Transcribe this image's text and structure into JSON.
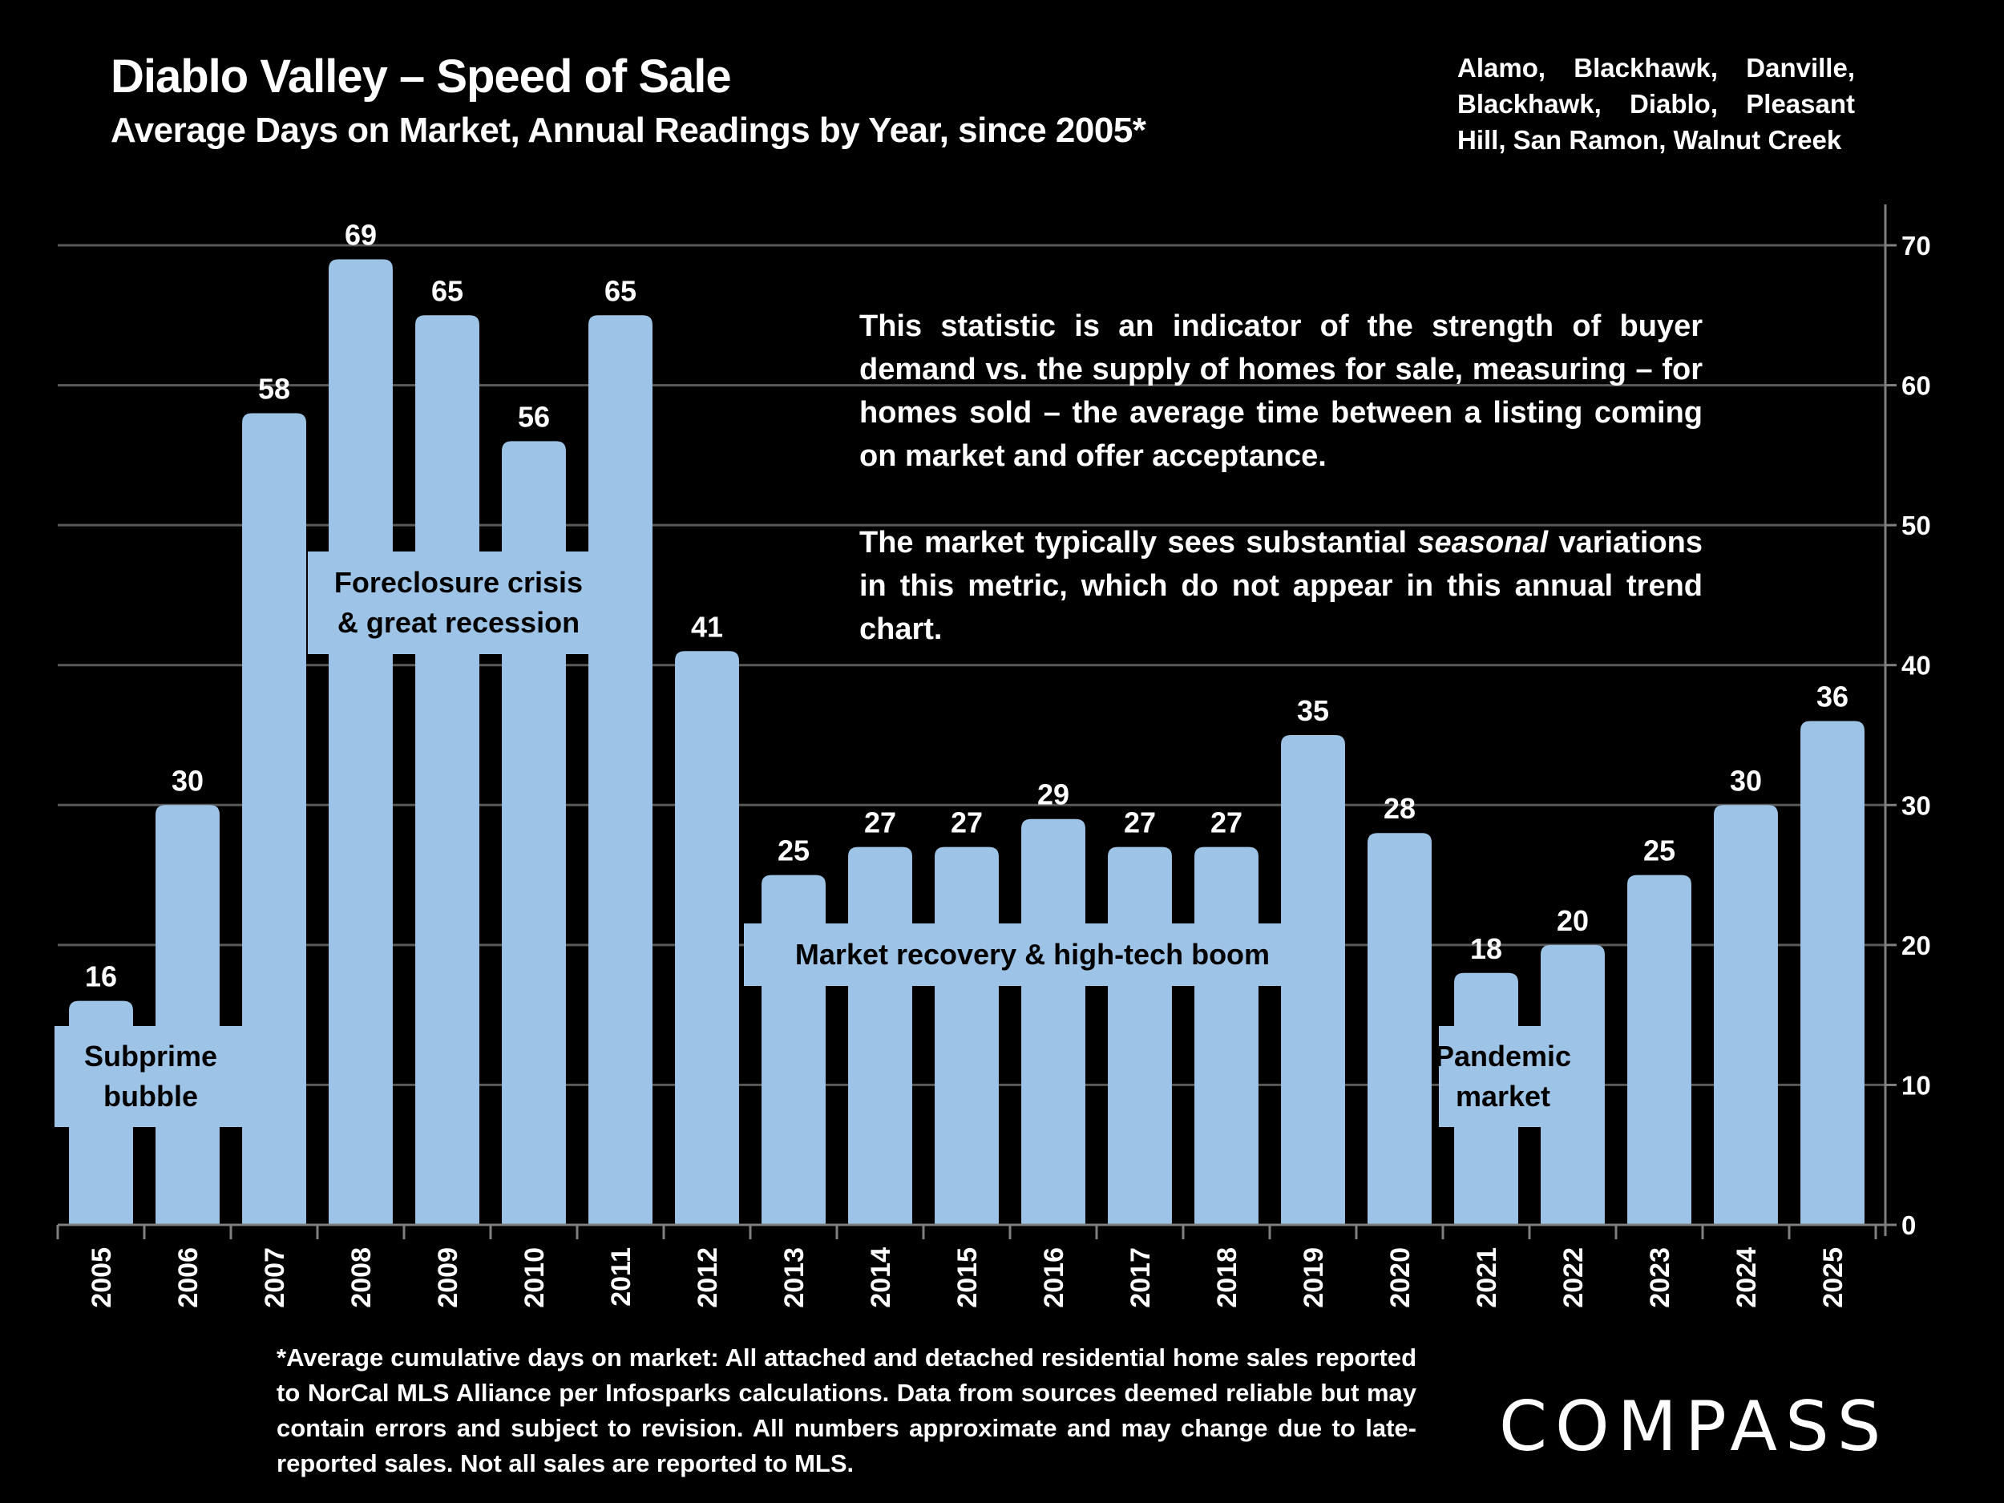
{
  "header": {
    "title": "Diablo Valley – Speed of Sale",
    "subtitle": "Average Days on Market, Annual Readings by Year, since 2005*",
    "areas": "Alamo, Blackhawk, Danville, Blackhawk, Diablo, Pleasant Hill, San Ramon, Walnut Creek"
  },
  "description": {
    "paragraph1": "This statistic is an indicator of the strength of buyer demand vs. the supply of homes for sale, measuring – for homes sold – the average time between a listing coming on market and offer acceptance.",
    "paragraph2_before": "The market typically sees substantial ",
    "paragraph2_emphasis": "seasonal",
    "paragraph2_after": " variations in this metric, which do not appear in this annual trend chart."
  },
  "footnote": "*Average cumulative days on market: All attached and detached residential home sales reported to NorCal MLS Alliance per Infosparks calculations. Data from sources deemed reliable but may contain errors and subject to revision. All numbers approximate and may change due to late-reported sales. Not all sales are reported to MLS.",
  "logo": "COMPASS",
  "colors": {
    "bar": "#9DC3E6",
    "background": "#000000",
    "gridline": "#595959",
    "axis": "#808080",
    "text": "#FFFFFF"
  },
  "chart_data": {
    "type": "bar",
    "title": "Diablo Valley – Speed of Sale",
    "subtitle": "Average Days on Market, Annual Readings by Year, since 2005*",
    "xlabel": "",
    "ylabel": "",
    "y_axis_position": "right",
    "ylim": [
      0,
      70
    ],
    "yticks": [
      0,
      10,
      20,
      30,
      40,
      50,
      60,
      70
    ],
    "grid": true,
    "categories": [
      "2005",
      "2006",
      "2007",
      "2008",
      "2009",
      "2010",
      "2011",
      "2012",
      "2013",
      "2014",
      "2015",
      "2016",
      "2017",
      "2018",
      "2019",
      "2020",
      "2021",
      "2022",
      "2023",
      "2024",
      "2025"
    ],
    "values": [
      16,
      30,
      58,
      69,
      65,
      56,
      65,
      41,
      25,
      27,
      27,
      29,
      27,
      27,
      35,
      28,
      18,
      20,
      25,
      30,
      36
    ],
    "annotations": [
      {
        "lines": [
          "Subprime",
          "bubble"
        ],
        "span": [
          "2005",
          "2006"
        ]
      },
      {
        "lines": [
          "Foreclosure crisis",
          "& great recession"
        ],
        "span": [
          "2007",
          "2011"
        ]
      },
      {
        "lines": [
          "Market recovery & high-tech boom"
        ],
        "span": [
          "2012",
          "2019"
        ]
      },
      {
        "lines": [
          "Pandemic",
          "market"
        ],
        "span": [
          "2021",
          "2021"
        ]
      }
    ]
  }
}
